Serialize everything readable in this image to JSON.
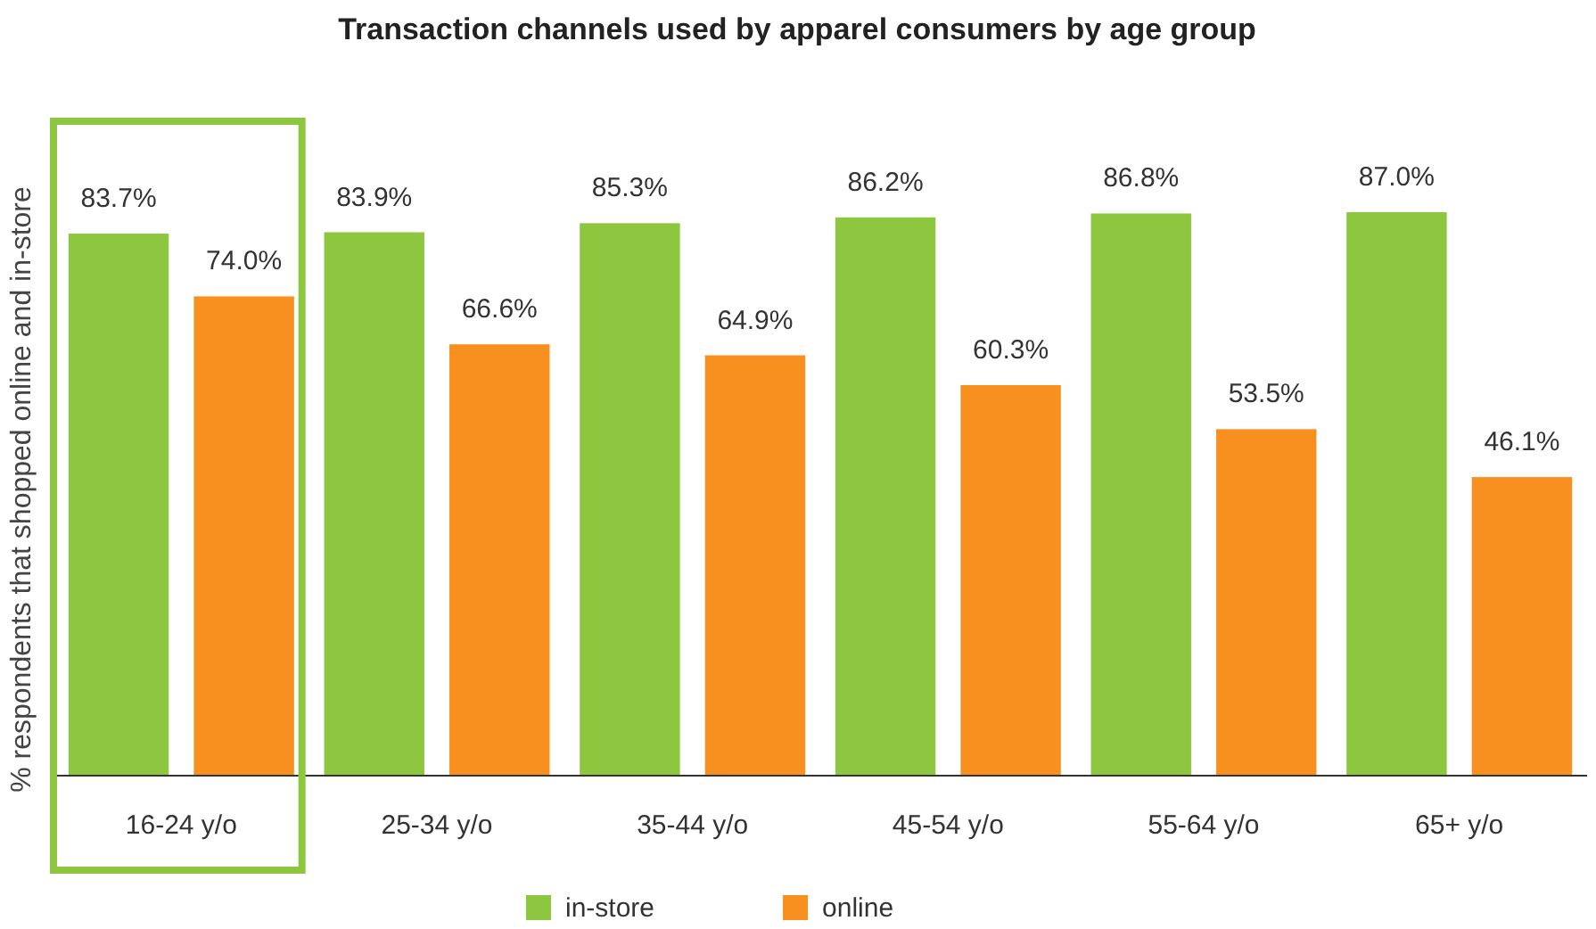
{
  "chart_data": {
    "type": "bar",
    "title": "Transaction channels used by apparel consumers by age group",
    "ylabel": "% respondents that shopped online and in-store",
    "categories": [
      "16-24 y/o",
      "25-34 y/o",
      "35-44 y/o",
      "45-54 y/o",
      "55-64 y/o",
      "65+ y/o"
    ],
    "series": [
      {
        "name": "in-store",
        "color": "#8dc63f",
        "values": [
          83.7,
          83.9,
          85.3,
          86.2,
          86.8,
          87.0
        ],
        "value_labels": [
          "83.7%",
          "83.9%",
          "85.3%",
          "86.2%",
          "86.8%",
          "87.0%"
        ]
      },
      {
        "name": "online",
        "color": "#f7901e",
        "values": [
          74.0,
          66.6,
          64.9,
          60.3,
          53.5,
          46.1
        ],
        "value_labels": [
          "74.0%",
          "66.6%",
          "64.9%",
          "60.3%",
          "53.5%",
          "46.1%"
        ]
      }
    ],
    "tick_labels": "x",
    "legend": "bottom"
  }
}
